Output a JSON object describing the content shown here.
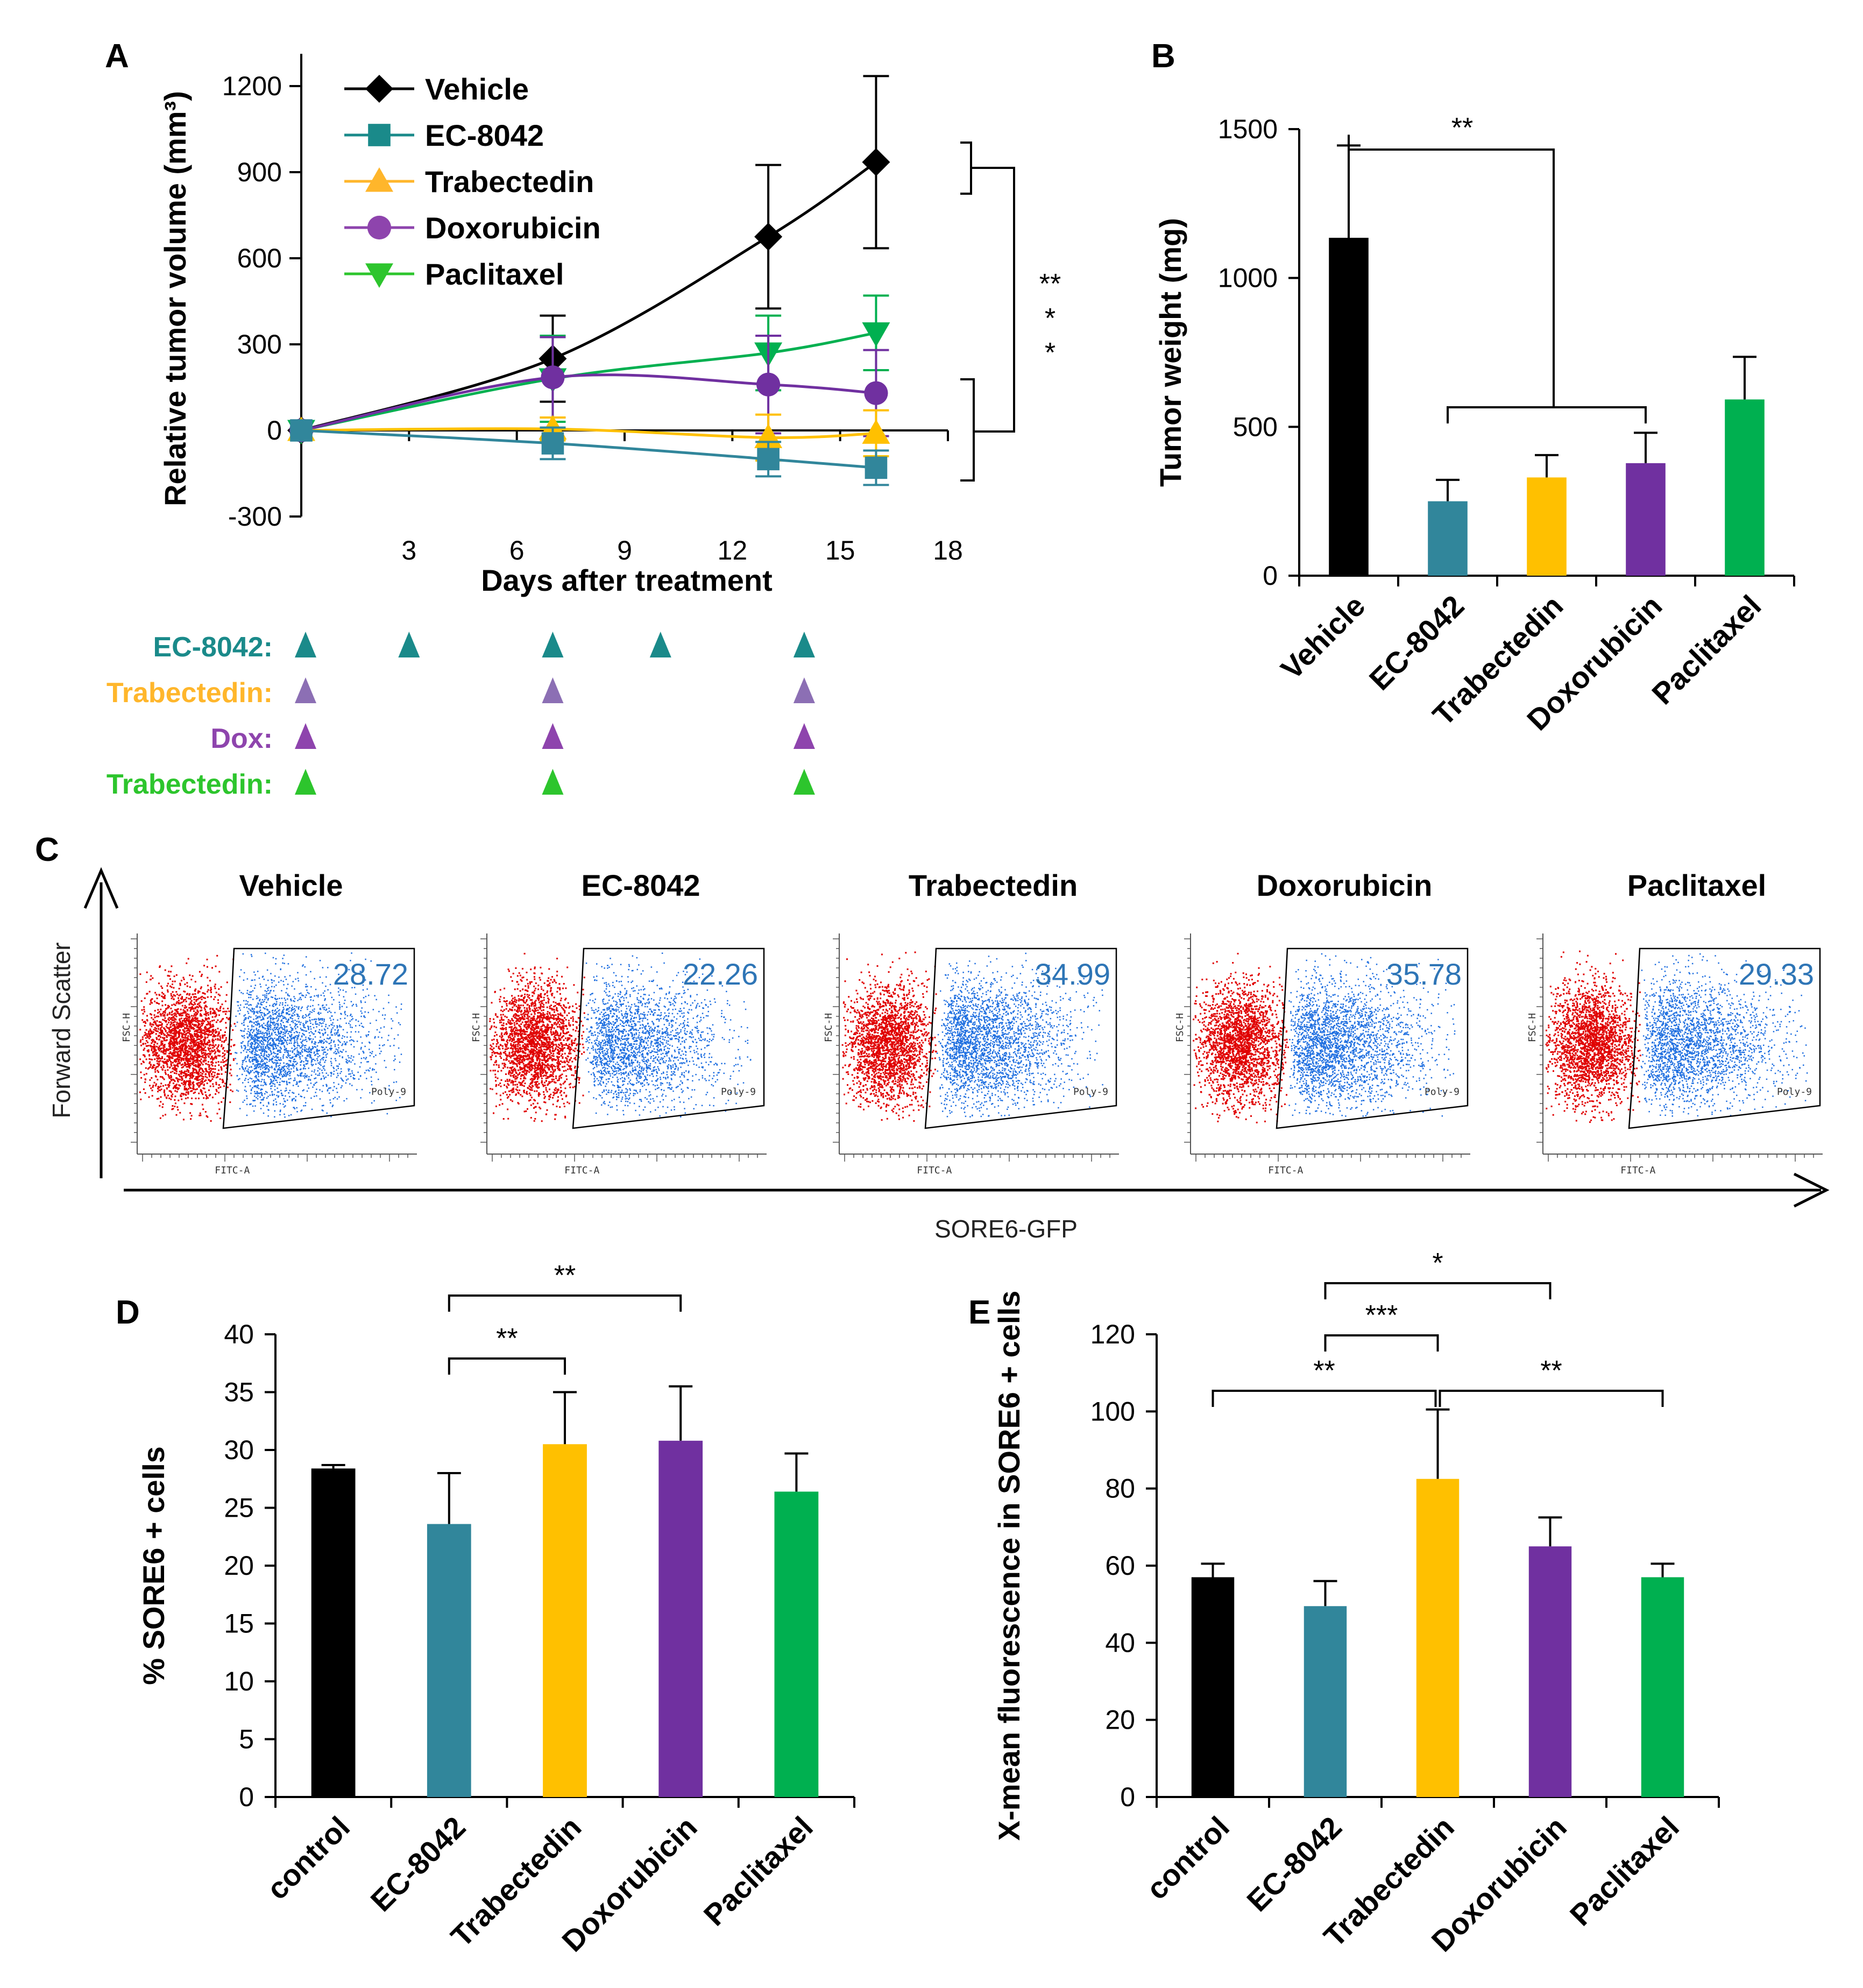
{
  "colors": {
    "vehicle": "#000000",
    "ec8042": "#31869b",
    "trabectedin": "#ffc000",
    "doxorubicin": "#7030a0",
    "paclitaxel": "#00b050",
    "legend_ec8042": "#1a8a8a",
    "legend_trab": "#ffb62b",
    "legend_dox": "#8e44ad",
    "legend_pac": "#2dc52d",
    "sig_teal": "#1a9a9a",
    "sig_orange": "#ffb300",
    "sig_purple": "#7030a0",
    "sched_trab_marker": "#8c6fb4",
    "flow_red": "#e00000",
    "flow_blue": "#1f6fe0",
    "pct_text": "#2e75b6"
  },
  "panels": {
    "a": "A",
    "b": "B",
    "c": "C",
    "d": "D",
    "e": "E"
  },
  "chart_data": [
    {
      "id": "A",
      "type": "line",
      "xlabel": "Days after treatment",
      "ylabel": "Relative tumor volume (mm³)",
      "xlim": [
        0,
        18
      ],
      "ylim": [
        -300,
        1200
      ],
      "xticks": [
        "3",
        "6",
        "9",
        "12",
        "15",
        "18"
      ],
      "yticks": [
        "-300",
        "0",
        "300",
        "600",
        "900",
        "1200"
      ],
      "series": [
        {
          "name": "Vehicle",
          "marker": "diamond",
          "color_key": "vehicle",
          "legend_color_key": "vehicle",
          "x": [
            0,
            7,
            13,
            16
          ],
          "y": [
            0,
            250,
            675,
            935
          ],
          "err": [
            0,
            150,
            250,
            300
          ]
        },
        {
          "name": "EC-8042",
          "marker": "square",
          "color_key": "ec8042",
          "legend_color_key": "legend_ec8042",
          "x": [
            0,
            7,
            13,
            16
          ],
          "y": [
            0,
            -45,
            -100,
            -130
          ],
          "err": [
            0,
            55,
            60,
            60
          ]
        },
        {
          "name": "Trabectedin",
          "marker": "triangle-up",
          "color_key": "trabectedin",
          "legend_color_key": "legend_trab",
          "x": [
            0,
            7,
            13,
            16
          ],
          "y": [
            0,
            5,
            -25,
            -10
          ],
          "err": [
            0,
            40,
            80,
            80
          ]
        },
        {
          "name": "Doxorubicin",
          "marker": "circle",
          "color_key": "doxorubicin",
          "legend_color_key": "legend_dox",
          "x": [
            0,
            7,
            13,
            16
          ],
          "y": [
            0,
            185,
            160,
            130
          ],
          "err": [
            0,
            140,
            170,
            150
          ]
        },
        {
          "name": "Paclitaxel",
          "marker": "triangle-down",
          "color_key": "paclitaxel",
          "legend_color_key": "legend_pac",
          "x": [
            0,
            7,
            13,
            16
          ],
          "y": [
            0,
            180,
            270,
            340
          ],
          "err": [
            0,
            150,
            130,
            130
          ]
        }
      ],
      "significance": [
        {
          "text": "**",
          "color_key": "sig_teal"
        },
        {
          "text": "*",
          "color_key": "sig_orange"
        },
        {
          "text": "*",
          "color_key": "sig_purple"
        }
      ],
      "schedule": [
        {
          "label": "EC-8042:",
          "label_color_key": "legend_ec8042",
          "marker_color_key": "legend_ec8042",
          "days": [
            0,
            3,
            7,
            10,
            14
          ]
        },
        {
          "label": "Trabectedin:",
          "label_color_key": "legend_trab",
          "marker_color_key": "sched_trab_marker",
          "days": [
            0,
            7,
            14
          ]
        },
        {
          "label": "Dox:",
          "label_color_key": "legend_dox",
          "marker_color_key": "legend_dox",
          "days": [
            0,
            7,
            14
          ]
        },
        {
          "label": "Trabectedin:",
          "label_color_key": "legend_pac",
          "marker_color_key": "legend_pac",
          "days": [
            0,
            7,
            14
          ]
        }
      ]
    },
    {
      "id": "B",
      "type": "bar",
      "ylabel": "Tumor weight (mg)",
      "ylim": [
        0,
        1500
      ],
      "yticks": [
        "0",
        "500",
        "1000",
        "1500"
      ],
      "categories": [
        "Vehicle",
        "EC-8042",
        "Trabectedin",
        "Doxorubicin",
        "Paclitaxel"
      ],
      "values": [
        1135,
        250,
        330,
        378,
        592
      ],
      "errors": [
        310,
        72,
        75,
        102,
        143
      ],
      "color_keys": [
        "vehicle",
        "ec8042",
        "trabectedin",
        "doxorubicin",
        "paclitaxel"
      ],
      "significance": [
        {
          "text": "**",
          "from": 0,
          "to": [
            1,
            3
          ]
        }
      ]
    },
    {
      "id": "C",
      "type": "scatter",
      "xlabel": "SORE6-GFP",
      "ylabel": "Forward Scatter",
      "panel_axis_x": "FITC-A",
      "panel_axis_y": "FSC-H",
      "gate_label": "Poly-9",
      "panels": [
        {
          "title": "Vehicle",
          "percent": "28.72"
        },
        {
          "title": "EC-8042",
          "percent": "22.26"
        },
        {
          "title": "Trabectedin",
          "percent": "34.99"
        },
        {
          "title": "Doxorubicin",
          "percent": "35.78"
        },
        {
          "title": "Paclitaxel",
          "percent": "29.33"
        }
      ]
    },
    {
      "id": "D",
      "type": "bar",
      "ylabel": "% SORE6 + cells",
      "ylim": [
        0,
        40
      ],
      "yticks": [
        "0",
        "5",
        "10",
        "15",
        "20",
        "25",
        "30",
        "35",
        "40"
      ],
      "categories": [
        "control",
        "EC-8042",
        "Trabectedin",
        "Doxorubicin",
        "Paclitaxel"
      ],
      "values": [
        28.4,
        23.6,
        30.5,
        30.8,
        26.4
      ],
      "errors": [
        0.3,
        4.4,
        4.5,
        4.7,
        3.3
      ],
      "color_keys": [
        "vehicle",
        "ec8042",
        "trabectedin",
        "doxorubicin",
        "paclitaxel"
      ],
      "significance": [
        {
          "text": "**",
          "from": 1,
          "to": 2,
          "level": 0
        },
        {
          "text": "**",
          "from": 1,
          "to": 3,
          "level": 1
        }
      ]
    },
    {
      "id": "E",
      "type": "bar",
      "ylabel": "X-mean fluorescence in SORE6 + cells",
      "ylim": [
        0,
        120
      ],
      "yticks": [
        "0",
        "20",
        "40",
        "60",
        "80",
        "100",
        "120"
      ],
      "categories": [
        "control",
        "EC-8042",
        "Trabectedin",
        "Doxorubicin",
        "Paclitaxel"
      ],
      "values": [
        57,
        49.5,
        82.5,
        65,
        57
      ],
      "errors": [
        3.5,
        6.5,
        18,
        7.5,
        3.5
      ],
      "color_keys": [
        "vehicle",
        "ec8042",
        "trabectedin",
        "doxorubicin",
        "paclitaxel"
      ],
      "significance": [
        {
          "text": "**",
          "from": 0,
          "to": 2,
          "level": 0
        },
        {
          "text": "**",
          "from": 2,
          "to": 4,
          "level": 0
        },
        {
          "text": "***",
          "from": 1,
          "to": 2,
          "level": 1
        },
        {
          "text": "*",
          "from": 1,
          "to": 3,
          "level": 2
        }
      ]
    }
  ]
}
